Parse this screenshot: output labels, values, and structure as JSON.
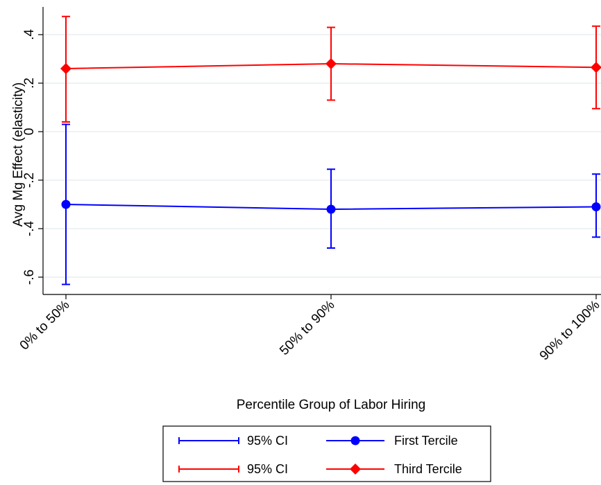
{
  "chart_data": {
    "type": "line",
    "xlabel": "Percentile Group of Labor Hiring",
    "ylabel": "Avg Mg Effect (elasticity)",
    "categories": [
      "0% to 50%",
      "50% to 90%",
      "90% to 100%"
    ],
    "y_ticks": [
      0.4,
      0.2,
      0,
      -0.2,
      -0.4,
      -0.6
    ],
    "y_tick_labels": [
      ".4",
      ".2",
      "0",
      "-.2",
      "-.4",
      "-.6"
    ],
    "ylim": [
      -0.7,
      0.48
    ],
    "grid": true,
    "legend_position": "bottom",
    "series": [
      {
        "name": "First Tercile",
        "ci_name": "95% CI",
        "color": "#0000ff",
        "marker": "circle",
        "values": [
          -0.3,
          -0.32,
          -0.31
        ],
        "ci_lower": [
          -0.63,
          -0.48,
          -0.435
        ],
        "ci_upper": [
          0.03,
          -0.155,
          -0.175
        ]
      },
      {
        "name": "Third Tercile",
        "ci_name": "95% CI",
        "color": "#ff0000",
        "marker": "diamond",
        "values": [
          0.26,
          0.28,
          0.265
        ],
        "ci_lower": [
          0.04,
          0.13,
          0.095
        ],
        "ci_upper": [
          0.475,
          0.43,
          0.435
        ]
      }
    ]
  }
}
